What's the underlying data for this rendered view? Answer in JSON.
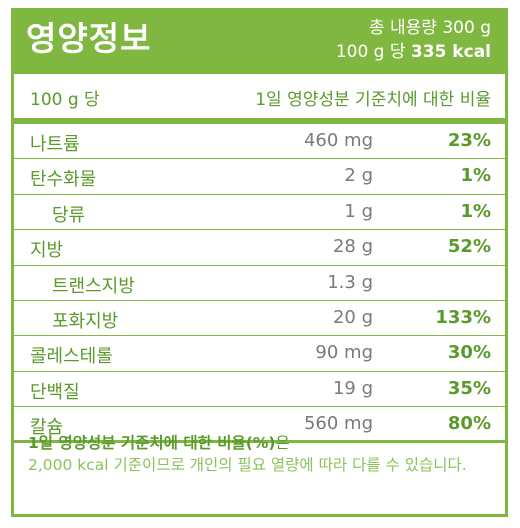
{
  "header": {
    "title": "영양정보",
    "total_line": "총 내용량 300 g",
    "per_prefix": "100 g 당 ",
    "calories": "335 kcal"
  },
  "columns": {
    "per_label": "100 g 당",
    "ratio_label": "1일 영양성분 기준치에 대한 비율"
  },
  "nutrients": [
    {
      "name": "나트륨",
      "amount": "460 mg",
      "percent": "23%"
    },
    {
      "name": "탄수화물",
      "amount": "2 g",
      "percent": "1%"
    },
    {
      "name": "당류",
      "amount": "1 g",
      "percent": "1%"
    },
    {
      "name": "지방",
      "amount": "28 g",
      "percent": "52%"
    },
    {
      "name": "트랜스지방",
      "amount": "1.3 g",
      "percent": ""
    },
    {
      "name": "포화지방",
      "amount": "20 g",
      "percent": "133%"
    },
    {
      "name": "콜레스테롤",
      "amount": "90 mg",
      "percent": "30%"
    },
    {
      "name": "단백질",
      "amount": "19 g",
      "percent": "35%"
    },
    {
      "name": "칼슘",
      "amount": "560 mg",
      "percent": "80%"
    }
  ],
  "footer": {
    "bold_text": "1일 영양성분 기준치에 대한 비율(%)",
    "bold_suffix": "은",
    "note": "2,000 kcal 기준이므로 개인의 필요 열량에 따라 다를 수 있습니다."
  }
}
